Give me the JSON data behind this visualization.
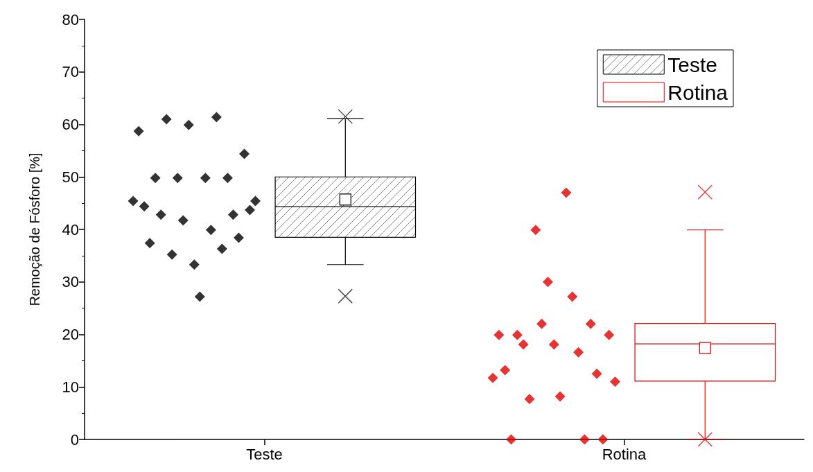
{
  "chart_data": {
    "type": "box",
    "ylabel": "Remoção de Fósforo [%]",
    "categories": [
      "Teste",
      "Rotina"
    ],
    "ylim": [
      0,
      80
    ],
    "yticks": [
      0,
      10,
      20,
      30,
      40,
      50,
      60,
      70,
      80
    ],
    "grid": false,
    "legend": "top right",
    "series": [
      {
        "name": "Teste",
        "type": "box",
        "color": "#000000",
        "boxes": [
          {
            "low": 33.3,
            "q1": 38.5,
            "median": 44.3,
            "q3": 50,
            "high": 61.1,
            "mean": 45.7,
            "outliers": [
              61.5,
              27.3
            ]
          },
          null
        ]
      },
      {
        "name": "Rotina",
        "type": "box",
        "color": "#e00000",
        "boxes": [
          null,
          {
            "low": 0,
            "q1": 11.1,
            "median": 18.2,
            "q3": 22.1,
            "high": 39.9,
            "mean": 17.4,
            "outliers": [
              47.1,
              0
            ]
          }
        ]
      },
      {
        "type": "scatter",
        "color": "#000000",
        "marker": "diamond",
        "x": [
          "Teste",
          "Teste",
          "Teste",
          "Teste",
          "Teste",
          "Teste",
          "Teste",
          "Teste",
          "Teste",
          "Teste",
          "Teste",
          "Teste",
          "Teste",
          "Teste",
          "Teste",
          "Teste",
          "Teste",
          "Teste",
          "Teste",
          "Teste",
          "Teste",
          "Teste",
          "Teste"
        ],
        "values": [
          45.4,
          58.7,
          44.4,
          37.4,
          49.8,
          42.8,
          61.0,
          35.2,
          49.8,
          41.7,
          59.9,
          33.3,
          27.2,
          49.8,
          39.9,
          61.4,
          36.3,
          49.8,
          42.8,
          38.4,
          54.4,
          43.7,
          45.4
        ]
      },
      {
        "type": "scatter",
        "color": "#e00000",
        "marker": "diamond",
        "x": [
          "Rotina",
          "Rotina",
          "Rotina",
          "Rotina",
          "Rotina",
          "Rotina",
          "Rotina",
          "Rotina",
          "Rotina",
          "Rotina",
          "Rotina",
          "Rotina",
          "Rotina",
          "Rotina",
          "Rotina",
          "Rotina",
          "Rotina",
          "Rotina",
          "Rotina",
          "Rotina",
          "Rotina"
        ],
        "values": [
          11.7,
          19.9,
          13.2,
          0,
          19.9,
          18.1,
          7.7,
          39.9,
          22.0,
          30.0,
          18.1,
          8.2,
          47.0,
          27.2,
          16.6,
          0,
          22.0,
          12.5,
          0,
          19.9,
          11.0
        ]
      }
    ]
  }
}
